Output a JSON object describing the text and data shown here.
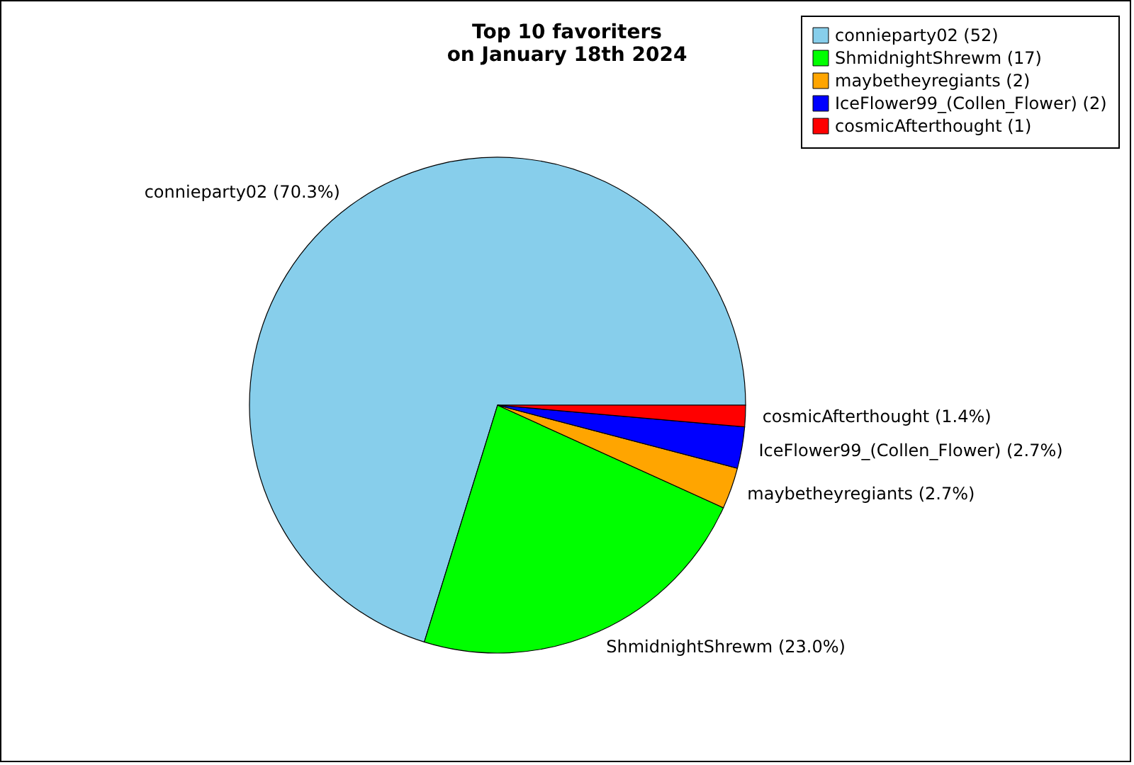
{
  "chart_data": {
    "type": "pie",
    "title": [
      "Top 10 favoriters",
      "on January 18th 2024"
    ],
    "categories": [
      "connieparty02 (52)",
      "ShmidnightShrewm (17)",
      "maybetheyregiants (2)",
      "IceFlower99_(Collen_Flower) (2)",
      "cosmicAfterthought (1)"
    ],
    "values": [
      70.3,
      23.0,
      2.7,
      2.7,
      1.4
    ],
    "colors": [
      "#87ceeb",
      "#00ff00",
      "#ffa500",
      "#0000ff",
      "#ff0000"
    ],
    "value_labels": [
      "connieparty02 (70.3%)",
      "ShmidnightShrewm (23.0%)",
      "maybetheyregiants (2.7%)",
      "IceFlower99_(Collen_Flower) (2.7%)",
      "cosmicAfterthought (1.4%)"
    ],
    "legend": "top right"
  }
}
